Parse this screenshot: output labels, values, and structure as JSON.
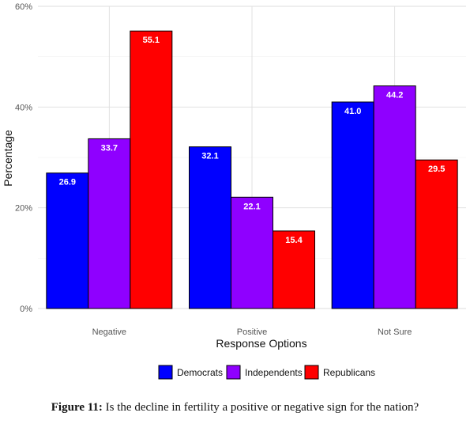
{
  "chart_data": {
    "type": "bar",
    "categories": [
      "Negative",
      "Positive",
      "Not Sure"
    ],
    "series": [
      {
        "name": "Democrats",
        "color": "#0000ff",
        "values": [
          26.9,
          32.1,
          41.0
        ]
      },
      {
        "name": "Independents",
        "color": "#8f00ff",
        "values": [
          33.7,
          22.1,
          44.2
        ]
      },
      {
        "name": "Republicans",
        "color": "#ff0000",
        "values": [
          55.1,
          15.4,
          29.5
        ]
      }
    ],
    "xlabel": "Response Options",
    "ylabel": "Percentage",
    "ylim": [
      0,
      60
    ],
    "yticks": [
      "0%",
      "20%",
      "40%",
      "60%"
    ],
    "ytick_values": [
      0,
      20,
      40,
      60
    ],
    "grid": true,
    "legend_position": "bottom"
  },
  "caption": {
    "label": "Figure 11:",
    "text": "Is the decline in fertility a positive or negative sign for the nation?"
  }
}
